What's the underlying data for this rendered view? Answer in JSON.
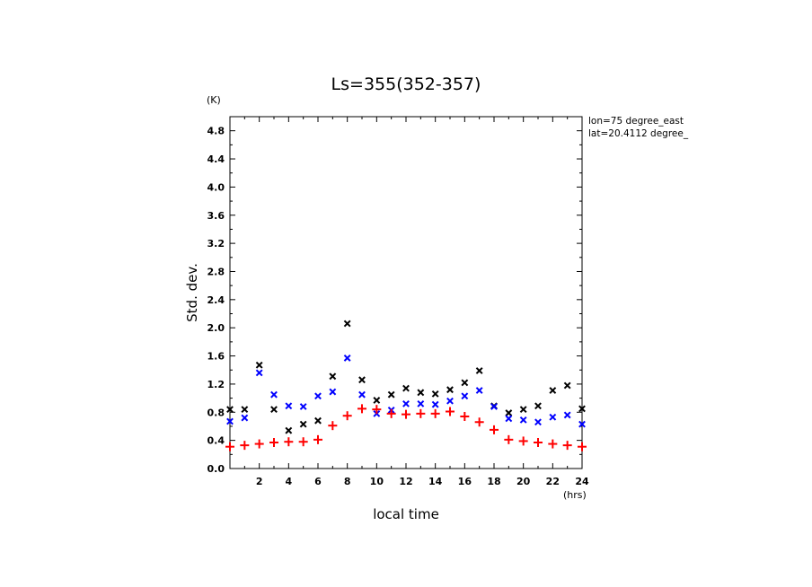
{
  "chart_data": {
    "type": "scatter",
    "title": "Ls=355(352-357)",
    "xlabel": "local time",
    "ylabel": "Std. dev.",
    "x_unit": "(hrs)",
    "y_unit": "(K)",
    "xlim": [
      0,
      24
    ],
    "ylim": [
      0,
      5.0
    ],
    "xticks": [
      2,
      4,
      6,
      8,
      10,
      12,
      14,
      16,
      18,
      20,
      22,
      24
    ],
    "yticks": [
      0.0,
      0.4,
      0.8,
      1.2,
      1.6,
      2.0,
      2.4,
      2.8,
      3.2,
      3.6,
      4.0,
      4.4,
      4.8
    ],
    "annotations": [
      "lon=75 degree_east",
      "lat=20.4112 degree_"
    ],
    "x": [
      0,
      1,
      2,
      3,
      4,
      5,
      6,
      7,
      8,
      9,
      10,
      11,
      12,
      13,
      14,
      15,
      16,
      17,
      18,
      19,
      20,
      21,
      22,
      23,
      24
    ],
    "series": [
      {
        "marker": "x",
        "color": "#000000",
        "values": [
          0.84,
          0.84,
          1.47,
          0.84,
          0.54,
          0.63,
          0.68,
          1.31,
          2.06,
          1.26,
          0.97,
          1.05,
          1.14,
          1.08,
          1.06,
          1.12,
          1.22,
          1.39,
          0.89,
          0.79,
          0.84,
          0.89,
          1.11,
          1.18,
          0.85
        ]
      },
      {
        "marker": "x",
        "color": "#0000ff",
        "values": [
          0.67,
          0.72,
          1.36,
          1.05,
          0.89,
          0.88,
          1.03,
          1.09,
          1.57,
          1.05,
          0.78,
          0.83,
          0.92,
          0.92,
          0.91,
          0.96,
          1.03,
          1.11,
          0.88,
          0.71,
          0.69,
          0.66,
          0.73,
          0.76,
          0.63
        ]
      },
      {
        "marker": "+",
        "color": "#ff0000",
        "values": [
          0.31,
          0.33,
          0.35,
          0.37,
          0.38,
          0.38,
          0.41,
          0.61,
          0.75,
          0.85,
          0.84,
          0.78,
          0.77,
          0.78,
          0.78,
          0.81,
          0.74,
          0.66,
          0.55,
          0.41,
          0.39,
          0.37,
          0.35,
          0.33,
          0.31
        ]
      }
    ]
  }
}
